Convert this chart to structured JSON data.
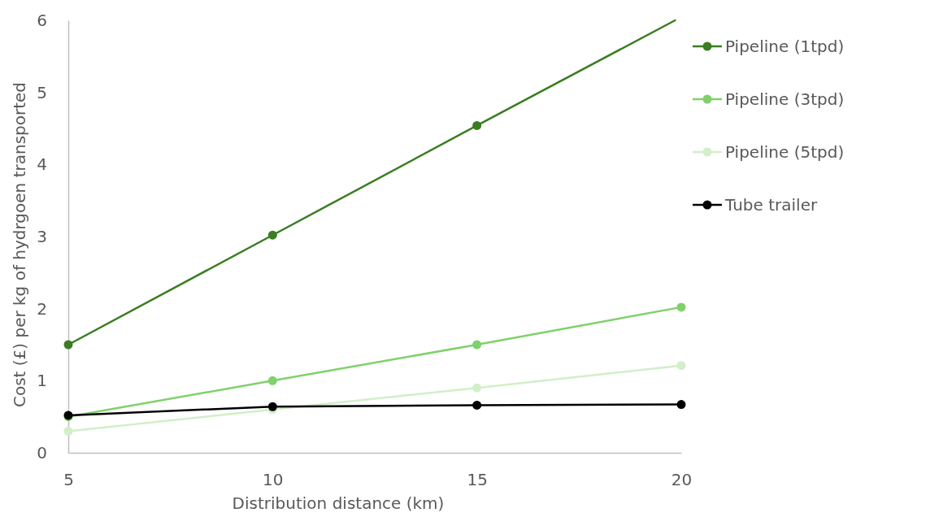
{
  "chart_data": {
    "type": "line",
    "xlabel": "Distribution distance (km)",
    "ylabel": "Cost (£) per kg of hydrgoen transported",
    "x": [
      5,
      10,
      15,
      20
    ],
    "series": [
      {
        "name": "Pipeline (1tpd)",
        "color": "#3a7d22",
        "x": [
          5,
          10,
          15,
          19.85
        ],
        "values": [
          1.5,
          3.02,
          4.54,
          6.0
        ]
      },
      {
        "name": "Pipeline (3tpd)",
        "color": "#7fd16b",
        "values": [
          0.5,
          1.0,
          1.5,
          2.02
        ]
      },
      {
        "name": "Pipeline (5tpd)",
        "color": "#d2efc8",
        "values": [
          0.3,
          0.6,
          0.9,
          1.21
        ]
      },
      {
        "name": "Tube trailer",
        "color": "#000000",
        "values": [
          0.52,
          0.64,
          0.66,
          0.67
        ]
      }
    ],
    "xlim": [
      5,
      20
    ],
    "xticks": [
      5,
      10,
      15,
      20
    ],
    "ylim": [
      0,
      6
    ],
    "yticks": [
      0,
      1,
      2,
      3,
      4,
      5,
      6
    ],
    "grid": false,
    "legend": "right",
    "marker": "circle",
    "line_style": "solid"
  }
}
